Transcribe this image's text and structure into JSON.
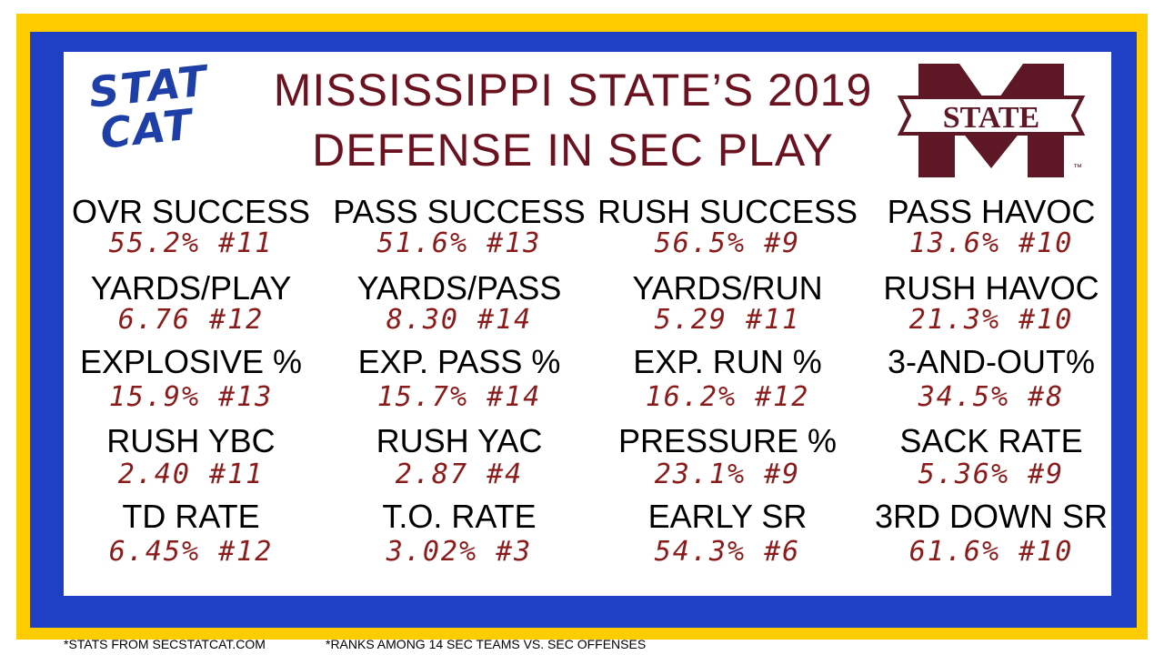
{
  "header": {
    "title_lines": [
      "MISSISSIPPI STATE’S 2019",
      "DEFENSE IN SEC PLAY"
    ],
    "left_logo": [
      "STAT",
      "CAT"
    ],
    "right_logo": {
      "text": "STATE",
      "tm": "™"
    }
  },
  "stats": [
    {
      "label": "OVR SUCCESS",
      "value": "55.2% #11"
    },
    {
      "label": "PASS SUCCESS",
      "value": "51.6% #13"
    },
    {
      "label": "RUSH SUCCESS",
      "value": "56.5% #9"
    },
    {
      "label": "PASS HAVOC",
      "value": "13.6% #10"
    },
    {
      "label": "YARDS/PLAY",
      "value": "6.76 #12"
    },
    {
      "label": "YARDS/PASS",
      "value": "8.30 #14"
    },
    {
      "label": "YARDS/RUN",
      "value": "5.29 #11"
    },
    {
      "label": "RUSH HAVOC",
      "value": "21.3% #10"
    },
    {
      "label": "EXPLOSIVE %",
      "value": "15.9% #13"
    },
    {
      "label": "EXP. PASS %",
      "value": "15.7% #14"
    },
    {
      "label": "EXP. RUN %",
      "value": "16.2% #12"
    },
    {
      "label": "3-AND-OUT%",
      "value": "34.5% #8"
    },
    {
      "label": "RUSH YBC",
      "value": "2.40 #11"
    },
    {
      "label": "RUSH YAC",
      "value": "2.87 #4"
    },
    {
      "label": "PRESSURE %",
      "value": "23.1% #9"
    },
    {
      "label": "SACK RATE",
      "value": "5.36% #9"
    },
    {
      "label": "TD RATE",
      "value": "6.45% #12"
    },
    {
      "label": "T.O. RATE",
      "value": "3.02% #3"
    },
    {
      "label": "EARLY SR",
      "value": "54.3% #6"
    },
    {
      "label": "3RD DOWN SR",
      "value": "61.6% #10"
    }
  ],
  "footer": [
    "*STATS FROM SECSTATCAT.COM",
    "*RANKS AMONG 14 SEC TEAMS VS. SEC OFFENSES"
  ]
}
